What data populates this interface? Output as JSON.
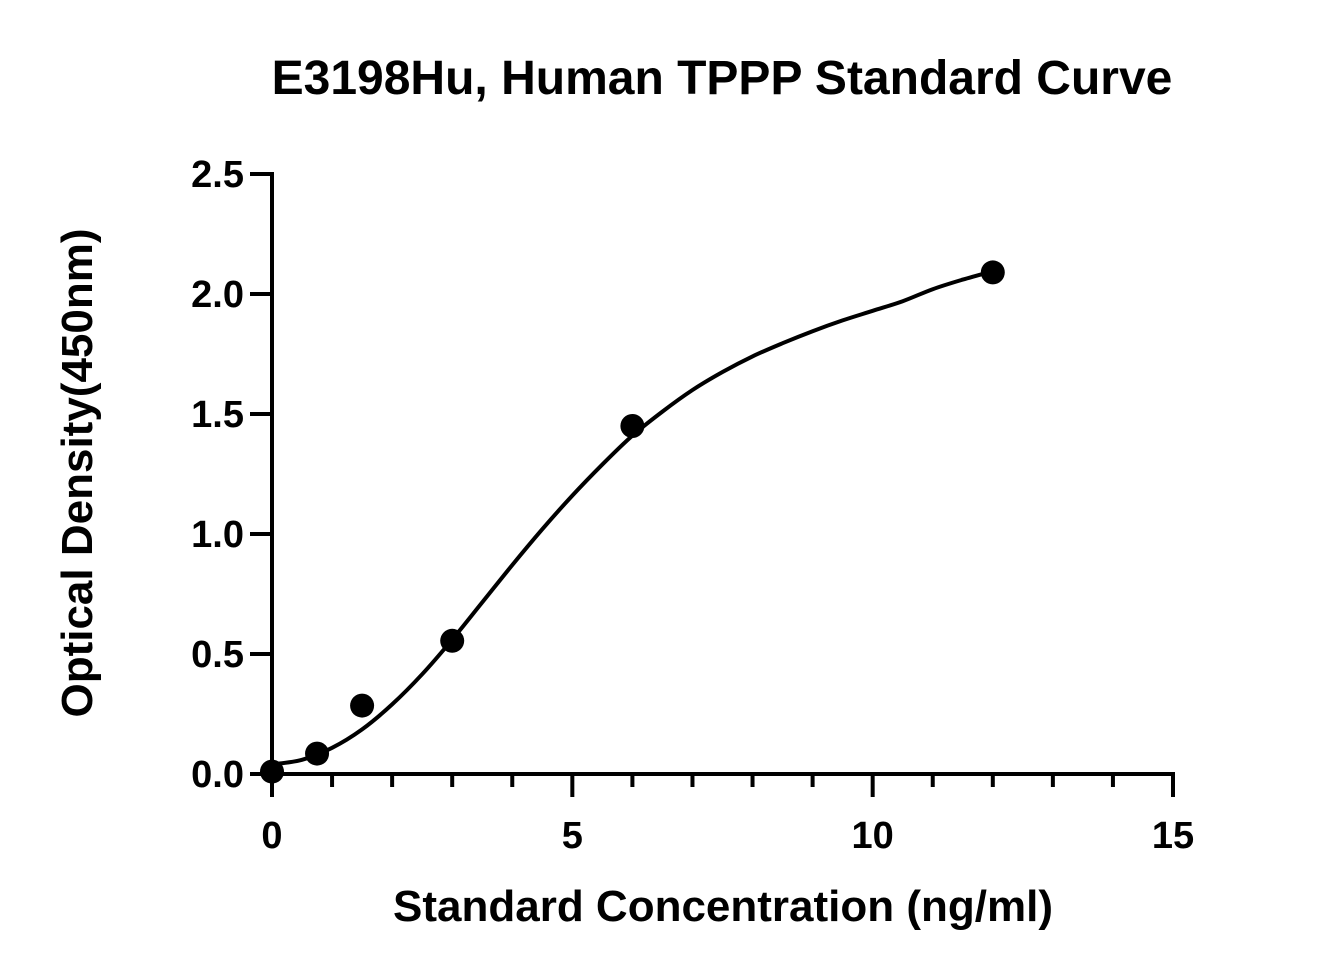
{
  "chart_data": {
    "type": "scatter",
    "title": "E3198Hu, Human TPPP Standard Curve",
    "xlabel": "Standard Concentration (ng/ml)",
    "ylabel": "Optical Density(450nm)",
    "xlim": [
      0,
      15
    ],
    "ylim": [
      0,
      2.5
    ],
    "x_ticks": [
      0,
      5,
      10,
      15
    ],
    "x_tick_labels": [
      "0",
      "5",
      "10",
      "15"
    ],
    "y_ticks": [
      0,
      0.5,
      1.0,
      1.5,
      2.0,
      2.5
    ],
    "y_tick_labels": [
      "0.0",
      "0.5",
      "1.0",
      "1.5",
      "2.0",
      "2.5"
    ],
    "x_minor_step": 1,
    "y_minor_step": 0.5,
    "grid": false,
    "legend": "none",
    "series": [
      {
        "x": [
          0,
          0.75,
          1.5,
          3,
          6,
          12
        ],
        "y": [
          0.01,
          0.085,
          0.285,
          0.555,
          1.45,
          2.09
        ],
        "marker": "circle",
        "color": "#000000"
      }
    ],
    "fit": {
      "type": "4PL",
      "x": [
        0,
        0.5,
        1,
        1.5,
        2,
        2.5,
        3,
        3.5,
        4,
        4.5,
        5,
        5.5,
        6,
        6.5,
        7,
        7.5,
        8,
        8.5,
        9,
        9.5,
        10,
        10.5,
        11,
        11.5,
        12
      ],
      "y": [
        0.04,
        0.059,
        0.109,
        0.186,
        0.29,
        0.416,
        0.56,
        0.715,
        0.871,
        1.02,
        1.16,
        1.29,
        1.41,
        1.51,
        1.6,
        1.675,
        1.74,
        1.795,
        1.845,
        1.89,
        1.93,
        1.97,
        2.02,
        2.06,
        2.095
      ],
      "color": "#000000"
    }
  }
}
